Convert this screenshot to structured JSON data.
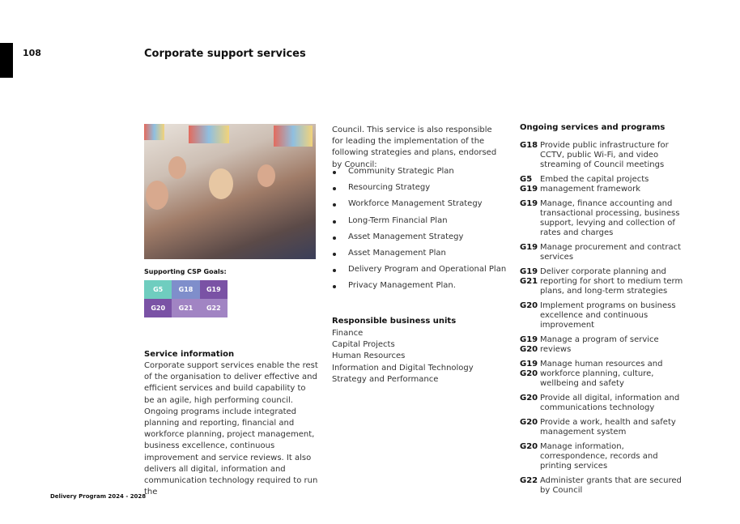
{
  "page_number": "108",
  "title": "Corporate support services",
  "csp_goals": {
    "label": "Supporting CSP Goals:",
    "goals": [
      {
        "code": "G5",
        "color": "#6fcdbf"
      },
      {
        "code": "G18",
        "color": "#7f8ecb"
      },
      {
        "code": "G19",
        "color": "#7a52a5"
      },
      {
        "code": "G20",
        "color": "#7a52a5"
      },
      {
        "code": "G21",
        "color": "#a184c3"
      },
      {
        "code": "G22",
        "color": "#a184c3"
      }
    ]
  },
  "service_info": {
    "heading": "Service information",
    "text": "Corporate support services enable the rest of the organisation to deliver effective and efficient services and build capability to be an agile, high performing council. Ongoing programs include integrated planning and reporting, financial and workforce planning, project management, business excellence, continuous improvement and service reviews. It also delivers all digital, information and communication technology required to run the"
  },
  "middle": {
    "intro": "Council. This service is also responsible for leading the implementation of the following strategies and plans, endorsed by Council:",
    "plans": [
      "Community Strategic Plan",
      "Resourcing Strategy",
      "Workforce Management Strategy",
      "Long-Term Financial Plan",
      "Asset Management Strategy",
      "Asset Management Plan",
      "Delivery Program and Operational Plan",
      "Privacy Management Plan."
    ],
    "units_heading": "Responsible business units",
    "units": [
      "Finance",
      "Capital Projects",
      "Human Resources",
      "Information and Digital Technology",
      "Strategy and Performance"
    ]
  },
  "ongoing": {
    "heading": "Ongoing services and programs",
    "items": [
      {
        "codes": "G18",
        "text": "Provide public infrastructure for CCTV, public Wi-Fi, and video streaming of Council meetings"
      },
      {
        "codes": "G5\nG19",
        "text": "Embed the capital projects management framework"
      },
      {
        "codes": "G19",
        "text": "Manage, finance accounting and transactional processing, business support, levying and collection of rates and charges"
      },
      {
        "codes": "G19",
        "text": "Manage procurement and contract services"
      },
      {
        "codes": "G19\nG21",
        "text": "Deliver corporate planning and reporting for short to medium term plans, and long-term strategies"
      },
      {
        "codes": "G20",
        "text": "Implement programs on business excellence and continuous improvement"
      },
      {
        "codes": "G19\nG20",
        "text": "Manage a program of service reviews"
      },
      {
        "codes": "G19\nG20",
        "text": "Manage human resources and workforce planning, culture, wellbeing and safety"
      },
      {
        "codes": "G20",
        "text": "Provide all digital, information and communications technology"
      },
      {
        "codes": "G20",
        "text": "Provide a work, health and safety management system"
      },
      {
        "codes": "G20",
        "text": "Manage information, correspondence, records and printing services"
      },
      {
        "codes": "G22",
        "text": "Administer grants that are secured by Council"
      }
    ]
  },
  "footer": "Delivery Program 2024 - 2028"
}
